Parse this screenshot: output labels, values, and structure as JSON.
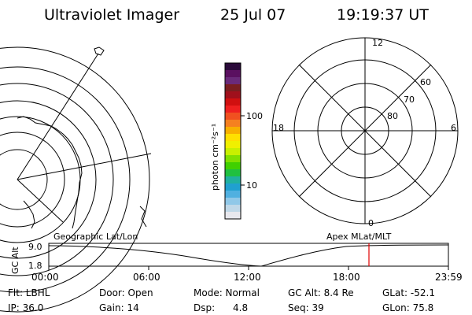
{
  "header": {
    "title": "Ultraviolet Imager",
    "date": "25 Jul 07",
    "time": "19:19:37 UT"
  },
  "colorbar": {
    "unit_label": "photon cm⁻²s⁻¹",
    "ticks": [
      "100",
      "10"
    ],
    "colors": [
      "#2a0a3a",
      "#5a1060",
      "#6a2a7a",
      "#7a1e20",
      "#a0101c",
      "#d01010",
      "#ee2020",
      "#f05020",
      "#f58020",
      "#f8b000",
      "#ffe000",
      "#f0f000",
      "#c8f000",
      "#80e000",
      "#40d000",
      "#20c040",
      "#20b0a0",
      "#20a0d0",
      "#50b0e0",
      "#90c8e8",
      "#c0d8e8",
      "#e8e8ee"
    ]
  },
  "polar_plot": {
    "hour_labels": {
      "top": "12",
      "left": "18",
      "right": "6",
      "bottom": "0"
    },
    "lat_labels": [
      "60",
      "70",
      "80"
    ]
  },
  "timeline": {
    "left_label": "Geographic Lat/Lon",
    "right_label": "Apex MLat/MLT",
    "axis_title": "GC Alt",
    "y_ticks": [
      "9.0",
      "1.8"
    ],
    "x_ticks": [
      "00:00",
      "06:00",
      "12:00",
      "18:00",
      "23:59"
    ],
    "marker_color": "#e00000"
  },
  "info": {
    "flt": "Flt: LBHL",
    "door": "Door: Open",
    "mode": "Mode: Normal",
    "gc_alt": "GC Alt: 8.4 Re",
    "glat": "GLat: -52.1",
    "ip": "IP: 36.0",
    "gain": "Gain: 14",
    "dsp_label": "Dsp:",
    "dsp_value": "4.8",
    "seq": "Seq: 39",
    "glon": "GLon: 75.8"
  }
}
